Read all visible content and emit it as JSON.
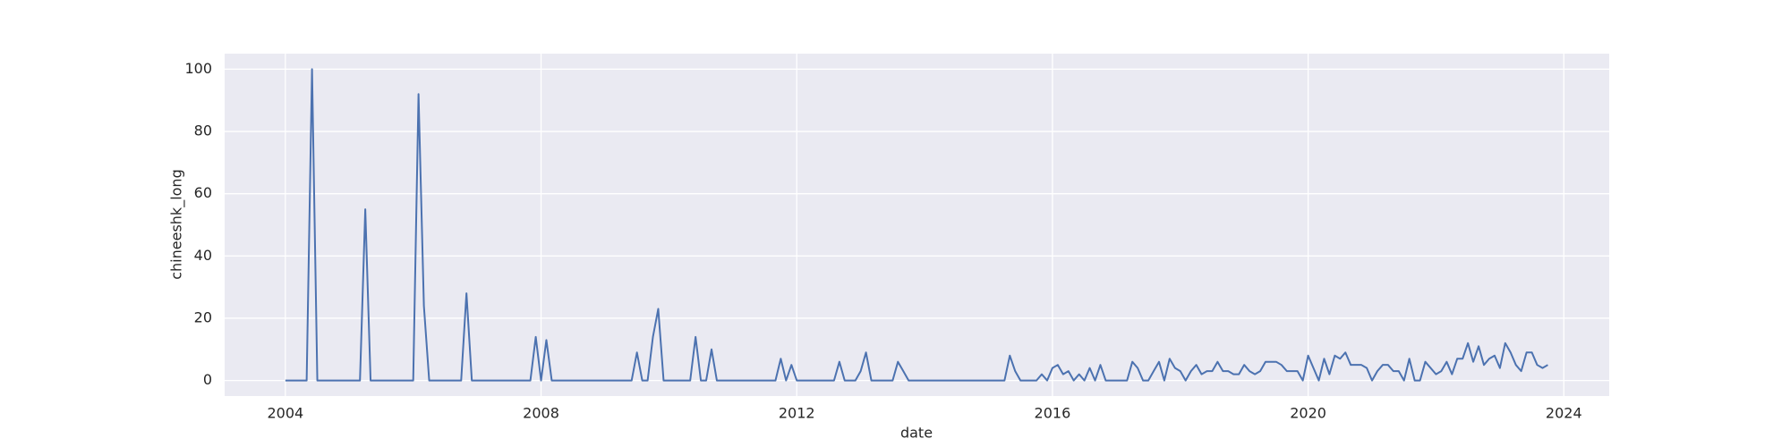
{
  "chart_data": {
    "type": "line",
    "xlabel": "date",
    "ylabel": "chineeshk_long",
    "x": [
      2004,
      2004.083,
      2004.167,
      2004.25,
      2004.333,
      2004.417,
      2004.5,
      2004.583,
      2004.667,
      2004.75,
      2004.833,
      2004.917,
      2005,
      2005.083,
      2005.167,
      2005.25,
      2005.333,
      2005.417,
      2005.5,
      2005.583,
      2005.667,
      2005.75,
      2005.833,
      2005.917,
      2006,
      2006.083,
      2006.167,
      2006.25,
      2006.333,
      2006.417,
      2006.5,
      2006.583,
      2006.667,
      2006.75,
      2006.833,
      2006.917,
      2007,
      2007.083,
      2007.167,
      2007.25,
      2007.333,
      2007.417,
      2007.5,
      2007.583,
      2007.667,
      2007.75,
      2007.833,
      2007.917,
      2008,
      2008.083,
      2008.167,
      2008.25,
      2008.333,
      2008.417,
      2008.5,
      2008.583,
      2008.667,
      2008.75,
      2008.833,
      2008.917,
      2009,
      2009.083,
      2009.167,
      2009.25,
      2009.333,
      2009.417,
      2009.5,
      2009.583,
      2009.667,
      2009.75,
      2009.833,
      2009.917,
      2010,
      2010.083,
      2010.167,
      2010.25,
      2010.333,
      2010.417,
      2010.5,
      2010.583,
      2010.667,
      2010.75,
      2010.833,
      2010.917,
      2011,
      2011.083,
      2011.167,
      2011.25,
      2011.333,
      2011.417,
      2011.5,
      2011.583,
      2011.667,
      2011.75,
      2011.833,
      2011.917,
      2012,
      2012.083,
      2012.167,
      2012.25,
      2012.333,
      2012.417,
      2012.5,
      2012.583,
      2012.667,
      2012.75,
      2012.833,
      2012.917,
      2013,
      2013.083,
      2013.167,
      2013.25,
      2013.333,
      2013.417,
      2013.5,
      2013.583,
      2013.667,
      2013.75,
      2013.833,
      2013.917,
      2014,
      2014.083,
      2014.167,
      2014.25,
      2014.333,
      2014.417,
      2014.5,
      2014.583,
      2014.667,
      2014.75,
      2014.833,
      2014.917,
      2015,
      2015.083,
      2015.167,
      2015.25,
      2015.333,
      2015.417,
      2015.5,
      2015.583,
      2015.667,
      2015.75,
      2015.833,
      2015.917,
      2016,
      2016.083,
      2016.167,
      2016.25,
      2016.333,
      2016.417,
      2016.5,
      2016.583,
      2016.667,
      2016.75,
      2016.833,
      2016.917,
      2017,
      2017.083,
      2017.167,
      2017.25,
      2017.333,
      2017.417,
      2017.5,
      2017.583,
      2017.667,
      2017.75,
      2017.833,
      2017.917,
      2018,
      2018.083,
      2018.167,
      2018.25,
      2018.333,
      2018.417,
      2018.5,
      2018.583,
      2018.667,
      2018.75,
      2018.833,
      2018.917,
      2019,
      2019.083,
      2019.167,
      2019.25,
      2019.333,
      2019.417,
      2019.5,
      2019.583,
      2019.667,
      2019.75,
      2019.833,
      2019.917,
      2020,
      2020.083,
      2020.167,
      2020.25,
      2020.333,
      2020.417,
      2020.5,
      2020.583,
      2020.667,
      2020.75,
      2020.833,
      2020.917,
      2021,
      2021.083,
      2021.167,
      2021.25,
      2021.333,
      2021.417,
      2021.5,
      2021.583,
      2021.667,
      2021.75,
      2021.833,
      2021.917,
      2022,
      2022.083,
      2022.167,
      2022.25,
      2022.333,
      2022.417,
      2022.5,
      2022.583,
      2022.667,
      2022.75,
      2022.833,
      2022.917,
      2023,
      2023.083,
      2023.167,
      2023.25,
      2023.333,
      2023.417,
      2023.5,
      2023.583,
      2023.667,
      2023.75
    ],
    "values": [
      0,
      0,
      0,
      0,
      0,
      100,
      0,
      0,
      0,
      0,
      0,
      0,
      0,
      0,
      0,
      55,
      0,
      0,
      0,
      0,
      0,
      0,
      0,
      0,
      0,
      92,
      24,
      0,
      0,
      0,
      0,
      0,
      0,
      0,
      28,
      0,
      0,
      0,
      0,
      0,
      0,
      0,
      0,
      0,
      0,
      0,
      0,
      14,
      0,
      13,
      0,
      0,
      0,
      0,
      0,
      0,
      0,
      0,
      0,
      0,
      0,
      0,
      0,
      0,
      0,
      0,
      9,
      0,
      0,
      14,
      23,
      0,
      0,
      0,
      0,
      0,
      0,
      14,
      0,
      0,
      10,
      0,
      0,
      0,
      0,
      0,
      0,
      0,
      0,
      0,
      0,
      0,
      0,
      7,
      0,
      5,
      0,
      0,
      0,
      0,
      0,
      0,
      0,
      0,
      6,
      0,
      0,
      0,
      3,
      9,
      0,
      0,
      0,
      0,
      0,
      6,
      3,
      0,
      0,
      0,
      0,
      0,
      0,
      0,
      0,
      0,
      0,
      0,
      0,
      0,
      0,
      0,
      0,
      0,
      0,
      0,
      8,
      3,
      0,
      0,
      0,
      0,
      2,
      0,
      4,
      5,
      2,
      3,
      0,
      2,
      0,
      4,
      0,
      5,
      0,
      0,
      0,
      0,
      0,
      6,
      4,
      0,
      0,
      3,
      6,
      0,
      7,
      4,
      3,
      0,
      3,
      5,
      2,
      3,
      3,
      6,
      3,
      3,
      2,
      2,
      5,
      3,
      2,
      3,
      6,
      6,
      6,
      5,
      3,
      3,
      3,
      0,
      8,
      4,
      0,
      7,
      2,
      8,
      7,
      9,
      5,
      5,
      5,
      4,
      0,
      3,
      5,
      5,
      3,
      3,
      0,
      7,
      0,
      0,
      6,
      4,
      2,
      3,
      6,
      2,
      7,
      7,
      12,
      6,
      11,
      5,
      7,
      8,
      4,
      12,
      9,
      5,
      3,
      9,
      9,
      5,
      4,
      5
    ],
    "color": "#4c72b0",
    "xlim": [
      2003.05,
      2024.71
    ],
    "xticks": [
      2004,
      2008,
      2012,
      2016,
      2020,
      2024
    ],
    "ylim": [
      -5,
      105
    ],
    "yticks": [
      0,
      20,
      40,
      60,
      80,
      100
    ],
    "grid": true
  }
}
